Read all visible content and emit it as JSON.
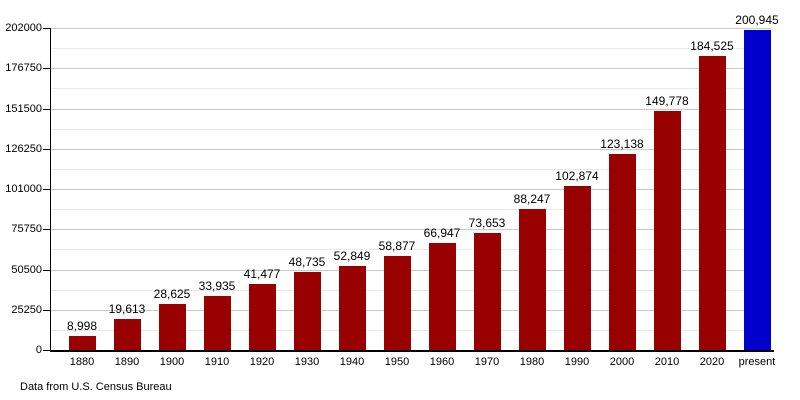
{
  "footnote": "Data from U.S. Census Bureau",
  "chart_data": {
    "type": "bar",
    "title": "",
    "xlabel": "",
    "ylabel": "",
    "categories": [
      "1880",
      "1890",
      "1900",
      "1910",
      "1920",
      "1930",
      "1940",
      "1950",
      "1960",
      "1970",
      "1980",
      "1990",
      "2000",
      "2010",
      "2020",
      "present"
    ],
    "values": [
      8998,
      19613,
      28625,
      33935,
      41477,
      48735,
      52849,
      58877,
      66947,
      73653,
      88247,
      102874,
      123138,
      149778,
      184525,
      200945
    ],
    "value_labels": [
      "8,998",
      "19,613",
      "28,625",
      "33,935",
      "41,477",
      "48,735",
      "52,849",
      "58,877",
      "66,947",
      "73,653",
      "88,247",
      "102,874",
      "123,138",
      "149,778",
      "184,525",
      "200,945"
    ],
    "ylim": [
      0,
      202000
    ],
    "yticks": [
      0,
      25250,
      50500,
      75750,
      101000,
      126250,
      151500,
      176750,
      202000
    ],
    "ytick_labels": [
      "0",
      "25250",
      "50500",
      "75750",
      "101000",
      "126250",
      "151500",
      "176750",
      "202000"
    ],
    "grid": "horizontal major and minor gridlines, minor at half-intervals",
    "legend": "none",
    "bar_color": "#990000",
    "highlight_category": "present",
    "highlight_color": "#0000cc"
  }
}
